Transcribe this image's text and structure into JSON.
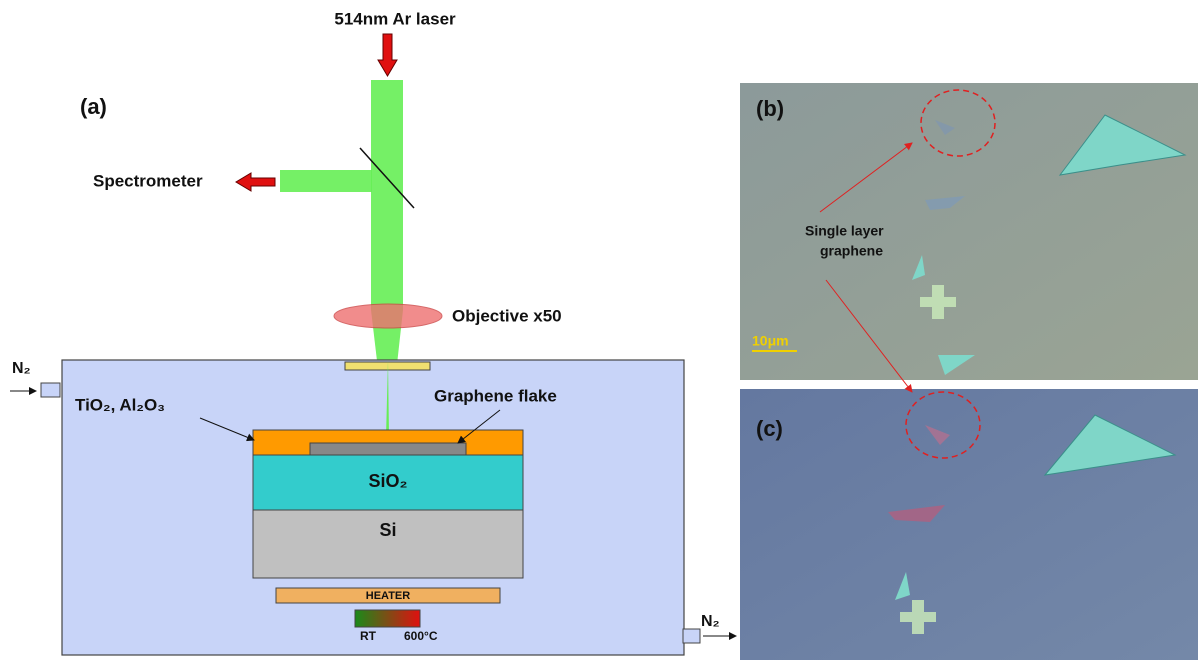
{
  "labels": {
    "laser": "514nm Ar laser",
    "panel_a": "(a)",
    "spectrometer": "Spectrometer",
    "objective": "Objective x50",
    "n2_in": "N₂",
    "n2_out": "N₂",
    "coating": "TiO₂, Al₂O₃",
    "graphene_flake": "Graphene flake",
    "sio2": "SiO₂",
    "si": "Si",
    "heater": "HEATER",
    "rt": "RT",
    "max_temp": "600°C",
    "panel_b": "(b)",
    "panel_c": "(c)",
    "single_layer": [
      "Single layer",
      "graphene"
    ],
    "scale_bar": "10μm"
  }
}
